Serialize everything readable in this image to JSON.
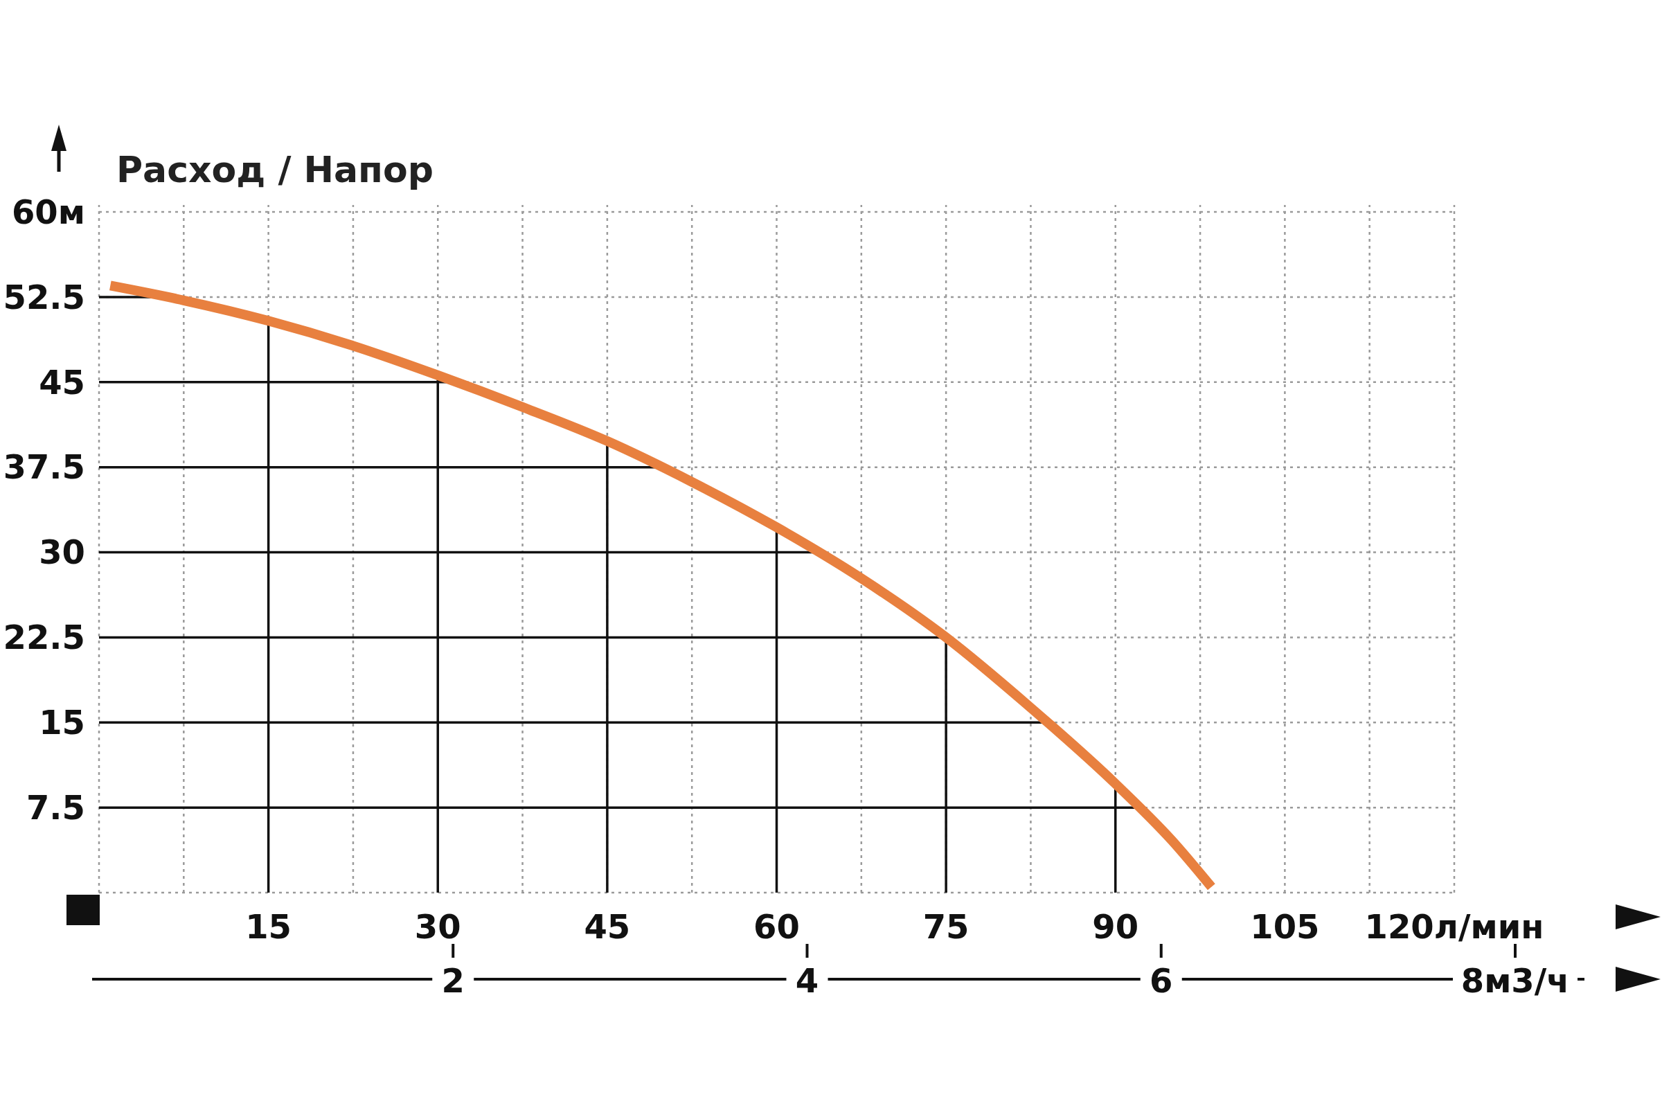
{
  "chart_data": {
    "type": "line",
    "title": "Расход / Напор",
    "x": [
      1,
      7.5,
      15,
      22.5,
      30,
      37.5,
      45,
      52.5,
      60,
      67.5,
      75,
      82.5,
      90,
      95,
      98.5
    ],
    "series": [
      {
        "color": "#e8803f",
        "values": [
          53.5,
          52.2,
          50.4,
          48.2,
          45.6,
          42.8,
          39.8,
          36.2,
          32.2,
          27.7,
          22.5,
          16.3,
          9.6,
          4.6,
          0.5
        ]
      }
    ],
    "xlim": [
      0,
      120
    ],
    "xticks": [
      {
        "value": 7.5,
        "label": null
      },
      15,
      {
        "value": 22.5,
        "label": null
      },
      30,
      {
        "value": 37.5,
        "label": null
      },
      45,
      {
        "value": 52.5,
        "label": null
      },
      60,
      {
        "value": 67.5,
        "label": null
      },
      75,
      {
        "value": 82.5,
        "label": null
      },
      90,
      {
        "value": 97.5,
        "label": null
      },
      105,
      {
        "value": 112.5,
        "label": null
      },
      {
        "value": 120,
        "label": "120л/мин"
      }
    ],
    "ylim": [
      0,
      60
    ],
    "yticks": [
      7.5,
      15,
      22.5,
      30,
      37.5,
      45,
      52.5,
      {
        "value": 60,
        "label": "60м"
      }
    ],
    "x2lim": [
      0,
      8
    ],
    "x2ticks": [
      2,
      4,
      6,
      {
        "value": 8,
        "label": "8м3/ч"
      }
    ],
    "grid": true,
    "marker": "none",
    "line_style": "solid"
  }
}
